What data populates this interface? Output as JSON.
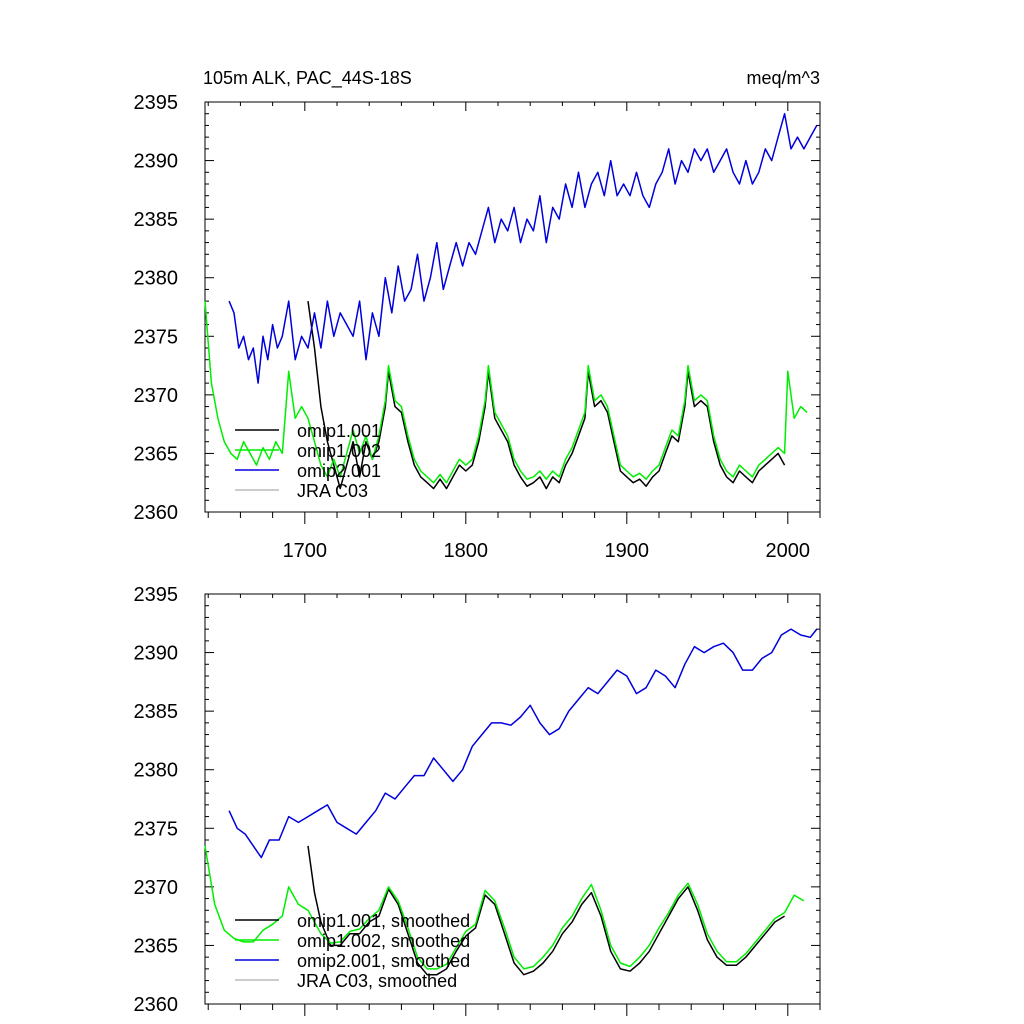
{
  "colors": {
    "omip1_001": "#000000",
    "omip1_002": "#00ee00",
    "omip2_001": "#0000dd",
    "jra_c03": "#bbbbbb"
  },
  "chart_data": [
    {
      "type": "line",
      "title": "105m ALK, PAC_44S-18S",
      "units": "meq/m^3",
      "xlim": [
        1638,
        2020
      ],
      "ylim": [
        2360,
        2395
      ],
      "x_ticks": [
        "1700",
        "1800",
        "1900",
        "2000"
      ],
      "y_ticks": [
        "2360",
        "2365",
        "2370",
        "2375",
        "2380",
        "2385",
        "2390",
        "2395"
      ],
      "legend_position": "lower-left",
      "series": [
        {
          "name": "omip1.001",
          "color_key": "omip1_001",
          "x": [
            1702,
            1706,
            1710,
            1714,
            1718,
            1722,
            1726,
            1730,
            1734,
            1738,
            1742,
            1746,
            1750,
            1752,
            1756,
            1760,
            1764,
            1768,
            1772,
            1776,
            1780,
            1784,
            1788,
            1792,
            1796,
            1800,
            1804,
            1808,
            1812,
            1814,
            1818,
            1822,
            1826,
            1830,
            1834,
            1838,
            1842,
            1846,
            1850,
            1854,
            1858,
            1862,
            1866,
            1870,
            1874,
            1876,
            1880,
            1884,
            1888,
            1892,
            1896,
            1900,
            1904,
            1908,
            1912,
            1916,
            1920,
            1924,
            1928,
            1932,
            1936,
            1938,
            1942,
            1946,
            1950,
            1954,
            1958,
            1962,
            1966,
            1970,
            1974,
            1978,
            1982,
            1986,
            1990,
            1994,
            1998
          ],
          "y": [
            2378,
            2374,
            2369,
            2366,
            2364,
            2362,
            2364,
            2366,
            2363,
            2366,
            2364.5,
            2366,
            2369,
            2372,
            2369,
            2368.5,
            2366,
            2364,
            2363,
            2362.5,
            2362,
            2362.8,
            2362,
            2363,
            2364,
            2363.5,
            2364,
            2366,
            2369,
            2372,
            2368,
            2367,
            2366,
            2364,
            2363,
            2362.2,
            2362.5,
            2363,
            2362,
            2363,
            2362.5,
            2364,
            2365,
            2366.5,
            2368,
            2372,
            2369,
            2369.5,
            2368.5,
            2366,
            2363.5,
            2363,
            2362.5,
            2362.8,
            2362.2,
            2363,
            2363.5,
            2365,
            2366.5,
            2366,
            2369,
            2372,
            2369,
            2369.5,
            2369,
            2366,
            2364,
            2363,
            2362.5,
            2363.5,
            2363,
            2362.5,
            2363.5,
            2364,
            2364.5,
            2365,
            2364
          ]
        },
        {
          "name": "omip1.002",
          "color_key": "omip1_002",
          "x": [
            1638,
            1642,
            1646,
            1650,
            1654,
            1658,
            1662,
            1666,
            1670,
            1674,
            1678,
            1682,
            1686,
            1690,
            1694,
            1698,
            1702,
            1706,
            1710,
            1714,
            1718,
            1722,
            1726,
            1730,
            1734,
            1738,
            1742,
            1746,
            1750,
            1752,
            1756,
            1760,
            1764,
            1768,
            1772,
            1776,
            1780,
            1784,
            1788,
            1792,
            1796,
            1800,
            1804,
            1808,
            1812,
            1814,
            1818,
            1822,
            1826,
            1830,
            1834,
            1838,
            1842,
            1846,
            1850,
            1854,
            1858,
            1862,
            1866,
            1870,
            1874,
            1876,
            1880,
            1884,
            1888,
            1892,
            1896,
            1900,
            1904,
            1908,
            1912,
            1916,
            1920,
            1924,
            1928,
            1932,
            1936,
            1938,
            1942,
            1946,
            1950,
            1954,
            1958,
            1962,
            1966,
            1970,
            1974,
            1978,
            1982,
            1986,
            1990,
            1994,
            1998,
            2000,
            2004,
            2008,
            2012
          ],
          "y": [
            2378,
            2371,
            2368,
            2366,
            2365,
            2364.5,
            2366,
            2365,
            2364,
            2365.5,
            2364.5,
            2366,
            2365,
            2372,
            2368,
            2369,
            2368,
            2366,
            2364,
            2363,
            2364.5,
            2363,
            2365,
            2367,
            2365,
            2366.5,
            2364.5,
            2366.5,
            2369.5,
            2372.5,
            2369.5,
            2369,
            2366.5,
            2364.5,
            2363.5,
            2363,
            2362.5,
            2363.2,
            2362.5,
            2363.5,
            2364.5,
            2364,
            2364.5,
            2366.5,
            2369.5,
            2372.5,
            2368.5,
            2367.5,
            2366.5,
            2364.5,
            2363.5,
            2362.8,
            2363,
            2363.5,
            2362.8,
            2363.5,
            2363,
            2364.5,
            2365.5,
            2367,
            2368.5,
            2372.5,
            2369.5,
            2370,
            2369,
            2366.5,
            2364,
            2363.5,
            2363,
            2363.3,
            2362.8,
            2363.5,
            2364,
            2365.5,
            2367,
            2366.5,
            2369.5,
            2372.5,
            2369.5,
            2370,
            2369.5,
            2366.5,
            2364.5,
            2363.5,
            2363,
            2364,
            2363.5,
            2363,
            2364,
            2364.5,
            2365,
            2365.5,
            2365,
            2372,
            2368,
            2369,
            2368.5
          ]
        },
        {
          "name": "omip2.001",
          "color_key": "omip2_001",
          "x": [
            1653,
            1656,
            1659,
            1662,
            1665,
            1668,
            1671,
            1674,
            1677,
            1680,
            1683,
            1686,
            1690,
            1694,
            1698,
            1702,
            1706,
            1710,
            1714,
            1718,
            1722,
            1726,
            1730,
            1734,
            1738,
            1742,
            1746,
            1750,
            1754,
            1758,
            1762,
            1766,
            1770,
            1774,
            1778,
            1782,
            1786,
            1790,
            1794,
            1798,
            1802,
            1806,
            1810,
            1814,
            1818,
            1822,
            1826,
            1830,
            1834,
            1838,
            1842,
            1846,
            1850,
            1854,
            1858,
            1862,
            1866,
            1870,
            1874,
            1878,
            1882,
            1886,
            1890,
            1894,
            1898,
            1902,
            1906,
            1910,
            1914,
            1918,
            1922,
            1926,
            1930,
            1934,
            1938,
            1942,
            1946,
            1950,
            1954,
            1958,
            1962,
            1966,
            1970,
            1974,
            1978,
            1982,
            1986,
            1990,
            1994,
            1998,
            2002,
            2006,
            2010,
            2014,
            2018
          ],
          "y": [
            2378,
            2377,
            2374,
            2375,
            2373,
            2374,
            2371,
            2375,
            2373,
            2376,
            2374,
            2375,
            2378,
            2373,
            2375,
            2374,
            2377,
            2374,
            2378,
            2375,
            2377,
            2376,
            2375,
            2378,
            2373,
            2377,
            2375,
            2380,
            2377,
            2381,
            2378,
            2379,
            2382,
            2378,
            2380,
            2383,
            2379,
            2381,
            2383,
            2381,
            2383,
            2382,
            2384,
            2386,
            2383,
            2385,
            2384,
            2386,
            2383,
            2385,
            2384,
            2387,
            2383,
            2386,
            2385,
            2388,
            2386,
            2389,
            2386,
            2388,
            2389,
            2387,
            2390,
            2387,
            2388,
            2387,
            2389,
            2387,
            2386,
            2388,
            2389,
            2391,
            2388,
            2390,
            2389,
            2391,
            2390,
            2391,
            2389,
            2390,
            2391,
            2389,
            2388,
            2390,
            2388,
            2389,
            2391,
            2390,
            2392,
            2394,
            2391,
            2392,
            2391,
            2392,
            2393
          ]
        }
      ]
    },
    {
      "type": "line",
      "title": "",
      "xlim": [
        1638,
        2020
      ],
      "ylim": [
        2360,
        2395
      ],
      "y_ticks": [
        "2360",
        "2365",
        "2370",
        "2375",
        "2380",
        "2385",
        "2390",
        "2395"
      ],
      "legend_position": "lower-left",
      "series": [
        {
          "name": "omip1.001, smoothed",
          "color_key": "omip1_001",
          "x": [
            1702,
            1706,
            1710,
            1716,
            1722,
            1728,
            1734,
            1740,
            1746,
            1752,
            1758,
            1764,
            1770,
            1776,
            1782,
            1788,
            1794,
            1800,
            1806,
            1812,
            1818,
            1824,
            1830,
            1836,
            1842,
            1848,
            1854,
            1860,
            1866,
            1872,
            1878,
            1884,
            1890,
            1896,
            1902,
            1908,
            1914,
            1920,
            1926,
            1932,
            1938,
            1944,
            1950,
            1956,
            1962,
            1968,
            1974,
            1980,
            1986,
            1992,
            1998
          ],
          "y": [
            2373.5,
            2369.5,
            2367,
            2365,
            2365,
            2366,
            2366,
            2367,
            2367.5,
            2369.8,
            2368.5,
            2366,
            2363.5,
            2362.5,
            2362.5,
            2363,
            2364.5,
            2365.8,
            2366.5,
            2369.3,
            2368.5,
            2366,
            2363.5,
            2362.5,
            2362.8,
            2363.5,
            2364.5,
            2366,
            2367,
            2368.5,
            2369.5,
            2367.5,
            2364.5,
            2363,
            2362.8,
            2363.5,
            2364.5,
            2366,
            2367.5,
            2369,
            2370,
            2368,
            2365.5,
            2364,
            2363.3,
            2363.3,
            2364,
            2365,
            2366,
            2367,
            2367.5
          ]
        },
        {
          "name": "omip1.002, smoothed",
          "color_key": "omip1_002",
          "x": [
            1638,
            1644,
            1650,
            1656,
            1662,
            1668,
            1674,
            1680,
            1686,
            1690,
            1696,
            1702,
            1710,
            1716,
            1722,
            1728,
            1734,
            1740,
            1746,
            1752,
            1758,
            1764,
            1770,
            1776,
            1782,
            1788,
            1794,
            1800,
            1806,
            1812,
            1818,
            1824,
            1830,
            1836,
            1842,
            1848,
            1854,
            1860,
            1866,
            1872,
            1878,
            1884,
            1890,
            1896,
            1902,
            1908,
            1914,
            1920,
            1926,
            1932,
            1938,
            1944,
            1950,
            1956,
            1962,
            1968,
            1974,
            1980,
            1986,
            1992,
            1998,
            2004,
            2010
          ],
          "y": [
            2373.5,
            2368.5,
            2366.3,
            2365.6,
            2365.3,
            2365.3,
            2366.3,
            2366.8,
            2367.5,
            2370,
            2368.5,
            2368,
            2366,
            2365.2,
            2365.3,
            2366.2,
            2366.4,
            2367.3,
            2368,
            2370,
            2368.8,
            2366.5,
            2364,
            2363,
            2363,
            2363.4,
            2364.8,
            2366.2,
            2366.8,
            2369.7,
            2368.8,
            2366.5,
            2364,
            2363,
            2363.2,
            2364,
            2365,
            2366.5,
            2367.5,
            2369,
            2370.2,
            2368,
            2365,
            2363.5,
            2363.2,
            2364,
            2365,
            2366.5,
            2367.8,
            2369.3,
            2370.3,
            2368.5,
            2366,
            2364.5,
            2363.6,
            2363.6,
            2364.3,
            2365.3,
            2366.3,
            2367.3,
            2367.8,
            2369.3,
            2368.8
          ]
        },
        {
          "name": "omip2.001, smoothed",
          "color_key": "omip2_001",
          "x": [
            1653,
            1658,
            1663,
            1668,
            1673,
            1678,
            1684,
            1690,
            1696,
            1702,
            1708,
            1714,
            1720,
            1726,
            1732,
            1738,
            1744,
            1750,
            1756,
            1762,
            1768,
            1774,
            1780,
            1786,
            1792,
            1798,
            1804,
            1810,
            1816,
            1822,
            1828,
            1834,
            1840,
            1846,
            1852,
            1858,
            1864,
            1870,
            1876,
            1882,
            1888,
            1894,
            1900,
            1906,
            1912,
            1918,
            1924,
            1930,
            1936,
            1942,
            1948,
            1954,
            1960,
            1966,
            1972,
            1978,
            1984,
            1990,
            1996,
            2002,
            2008,
            2014,
            2018
          ],
          "y": [
            2376.5,
            2375,
            2374.5,
            2373.5,
            2372.5,
            2374,
            2374,
            2376,
            2375.5,
            2376,
            2376.5,
            2377,
            2375.5,
            2375,
            2374.5,
            2375.5,
            2376.5,
            2378,
            2377.5,
            2378.5,
            2379.5,
            2379.5,
            2381,
            2380,
            2379,
            2380,
            2382,
            2383,
            2384,
            2384,
            2383.8,
            2384.5,
            2385.5,
            2384,
            2383,
            2383.5,
            2385,
            2386,
            2387,
            2386.5,
            2387.5,
            2388.5,
            2388,
            2386.5,
            2387,
            2388.5,
            2388,
            2387,
            2389,
            2390.5,
            2390,
            2390.5,
            2390.8,
            2390,
            2388.5,
            2388.5,
            2389.5,
            2390,
            2391.5,
            2392,
            2391.5,
            2391.3,
            2392
          ]
        }
      ]
    }
  ],
  "legend_top": [
    "omip1.001",
    "omip1.002",
    "omip2.001",
    "JRA C03"
  ],
  "legend_bottom": [
    "omip1.001, smoothed",
    "omip1.002, smoothed",
    "omip2.001, smoothed",
    "JRA C03, smoothed"
  ]
}
